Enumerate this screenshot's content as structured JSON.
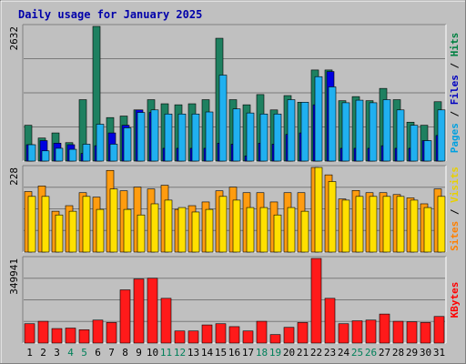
{
  "chart_data": {
    "type": "bar",
    "title": "Daily usage for January 2025",
    "categories": [
      "1",
      "2",
      "3",
      "4",
      "5",
      "6",
      "7",
      "8",
      "9",
      "10",
      "11",
      "12",
      "13",
      "14",
      "15",
      "16",
      "17",
      "18",
      "19",
      "20",
      "21",
      "22",
      "23",
      "24",
      "25",
      "26",
      "27",
      "28",
      "29",
      "30",
      "31"
    ],
    "weekend_days": [
      "4",
      "5",
      "11",
      "12",
      "18",
      "19",
      "25",
      "26"
    ],
    "panels": [
      {
        "name": "hits-files-pages",
        "max_label": "2632",
        "ylim": [
          0,
          2632
        ],
        "legend": [
          "Pages",
          "Files",
          "Hits"
        ],
        "legend_colors": [
          "#00A0E0",
          "#0000C0",
          "#008040"
        ],
        "series": [
          {
            "name": "Hits",
            "color": "#1e8060",
            "values": [
              700,
              450,
              550,
              360,
              1200,
              2632,
              850,
              880,
              1000,
              1200,
              1120,
              1100,
              1120,
              1200,
              2400,
              1200,
              1100,
              1300,
              1000,
              1280,
              1150,
              1780,
              1780,
              1180,
              1260,
              1180,
              1420,
              1200,
              760,
              700,
              1160
            ]
          },
          {
            "name": "Files",
            "color": "#0000e0",
            "values": [
              320,
              400,
              350,
              320,
              150,
              300,
              550,
              700,
              1000,
              950,
              250,
              250,
              250,
              250,
              350,
              330,
              100,
              350,
              330,
              520,
              550,
              1100,
              1750,
              250,
              250,
              250,
              300,
              250,
              250,
              400,
              500
            ]
          },
          {
            "name": "Pages",
            "color": "#20b0f0",
            "values": [
              320,
              200,
              250,
              230,
              330,
              720,
              330,
              650,
              950,
              1000,
              920,
              920,
              920,
              960,
              1680,
              1020,
              940,
              920,
              920,
              1200,
              1150,
              1650,
              1450,
              1140,
              1190,
              1140,
              1200,
              1000,
              700,
              400,
              1000
            ]
          }
        ]
      },
      {
        "name": "visits-sites",
        "max_label": "228",
        "ylim": [
          0,
          228
        ],
        "legend": [
          "Sites",
          "Visits"
        ],
        "legend_colors": [
          "#FF8000",
          "#E8D000"
        ],
        "series": [
          {
            "name": "Visits",
            "color": "#ff9c10",
            "values": [
              163,
              178,
              110,
              125,
              160,
              148,
              220,
              165,
              175,
              170,
              180,
              115,
              125,
              135,
              165,
              175,
              160,
              160,
              135,
              160,
              160,
              228,
              208,
              143,
              166,
              160,
              160,
              155,
              146,
              130,
              170
            ]
          },
          {
            "name": "Sites",
            "color": "#ffe000",
            "values": [
              150,
              150,
              100,
              110,
              150,
              115,
              170,
              115,
              100,
              130,
              140,
              120,
              108,
              115,
              150,
              140,
              120,
              120,
              100,
              120,
              110,
              228,
              190,
              140,
              150,
              150,
              150,
              150,
              140,
              120,
              150
            ]
          }
        ]
      },
      {
        "name": "kbytes",
        "max_label": "349941",
        "ylim": [
          0,
          349941
        ],
        "legend": [
          "KBytes"
        ],
        "legend_colors": [
          "#FF0000"
        ],
        "series": [
          {
            "name": "KBytes",
            "color": "#ff1a1a",
            "values": [
              80000,
              90000,
              60000,
              62000,
              55000,
              95000,
              85000,
              220000,
              265000,
              268000,
              185000,
              50000,
              50000,
              75000,
              80000,
              68000,
              50000,
              90000,
              35000,
              65000,
              85000,
              349941,
              185000,
              80000,
              92000,
              95000,
              120000,
              90000,
              88000,
              85000,
              110000
            ]
          }
        ]
      }
    ]
  }
}
